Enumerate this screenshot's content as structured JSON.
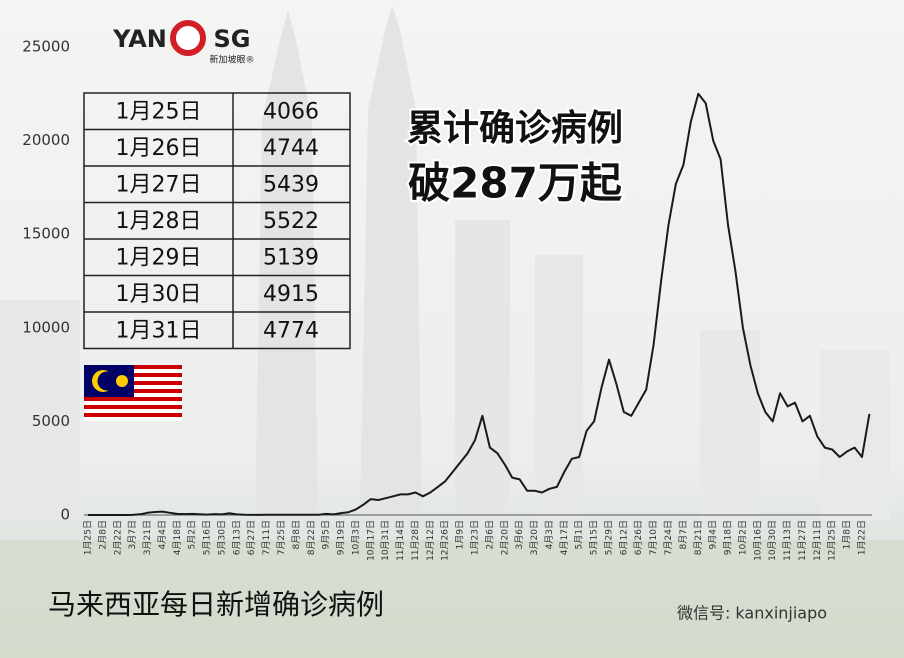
{
  "chart_data": {
    "type": "line",
    "title": "马来西亚每日新增确诊病例",
    "headline": [
      "累计确诊病例",
      "破287万起"
    ],
    "categories": [
      "1月25日",
      null,
      "2月8日",
      null,
      "2月22日",
      null,
      "3月7日",
      null,
      "3月21日",
      null,
      "4月4日",
      null,
      "4月18日",
      null,
      "5月2日",
      null,
      "5月16日",
      null,
      "5月30日",
      null,
      "6月13日",
      null,
      "6月27日",
      null,
      "7月11日",
      null,
      "7月25日",
      null,
      "8月8日",
      null,
      "8月22日",
      null,
      "9月5日",
      null,
      "9月19日",
      null,
      "10月3日",
      null,
      "10月17日",
      null,
      "10月31日",
      null,
      "11月14日",
      null,
      "11月28日",
      null,
      "12月12日",
      null,
      "12月26日",
      null,
      "1月9日",
      null,
      "1月23日",
      null,
      "2月6日",
      null,
      "2月20日",
      null,
      "3月6日",
      null,
      "3月20日",
      null,
      "4月3日",
      null,
      "4月17日",
      null,
      "5月1日",
      null,
      "5月15日",
      null,
      "5月29日",
      null,
      "6月12日",
      null,
      "6月26日",
      null,
      "7月10日",
      null,
      "7月24日",
      null,
      "8月7日",
      null,
      "8月21日",
      null,
      "9月4日",
      null,
      "9月18日",
      null,
      "10月2日",
      null,
      "10月16日",
      null,
      "10月30日",
      null,
      "11月13日",
      null,
      "11月27日",
      null,
      "12月11日",
      null,
      "12月25日",
      null,
      "1月8日",
      null,
      "1月22日",
      null
    ],
    "series": [
      {
        "name": null,
        "color": "#1a1a1a",
        "values": [
          0,
          0,
          0,
          0,
          0,
          0,
          5,
          40,
          120,
          160,
          180,
          120,
          60,
          50,
          60,
          40,
          20,
          50,
          30,
          90,
          30,
          10,
          5,
          5,
          10,
          10,
          15,
          10,
          15,
          10,
          10,
          10,
          60,
          30,
          100,
          150,
          300,
          550,
          850,
          800,
          900,
          1000,
          1100,
          1100,
          1200,
          1000,
          1200,
          1500,
          1800,
          2300,
          2800,
          3300,
          4000,
          5300,
          3600,
          3300,
          2700,
          2000,
          1900,
          1300,
          1300,
          1200,
          1400,
          1500,
          2300,
          3000,
          3100,
          4500,
          5000,
          6800,
          8300,
          7000,
          5500,
          5300,
          6000,
          6700,
          9100,
          12500,
          15500,
          17700,
          18700,
          21000,
          22500,
          22000,
          20000,
          19000,
          15500,
          13000,
          10000,
          8000,
          6500,
          5500,
          5000,
          6500,
          5800,
          6000,
          5000,
          5300,
          4200,
          3600,
          3500,
          3100,
          3400,
          3600,
          3100,
          5400
        ]
      }
    ],
    "ylim": [
      0,
      25000
    ],
    "yticks": [
      0,
      5000,
      10000,
      15000,
      20000,
      25000
    ]
  },
  "table": {
    "rows": [
      [
        "1月25日",
        4066
      ],
      [
        "1月26日",
        4744
      ],
      [
        "1月27日",
        5439
      ],
      [
        "1月28日",
        5522
      ],
      [
        "1月29日",
        5139
      ],
      [
        "1月30日",
        4915
      ],
      [
        "1月31日",
        4774
      ]
    ]
  },
  "logo": {
    "left": "YAN",
    "right": "SG",
    "sub": "新加坡眼®"
  },
  "watermark": "微信号: kanxinjiapo"
}
